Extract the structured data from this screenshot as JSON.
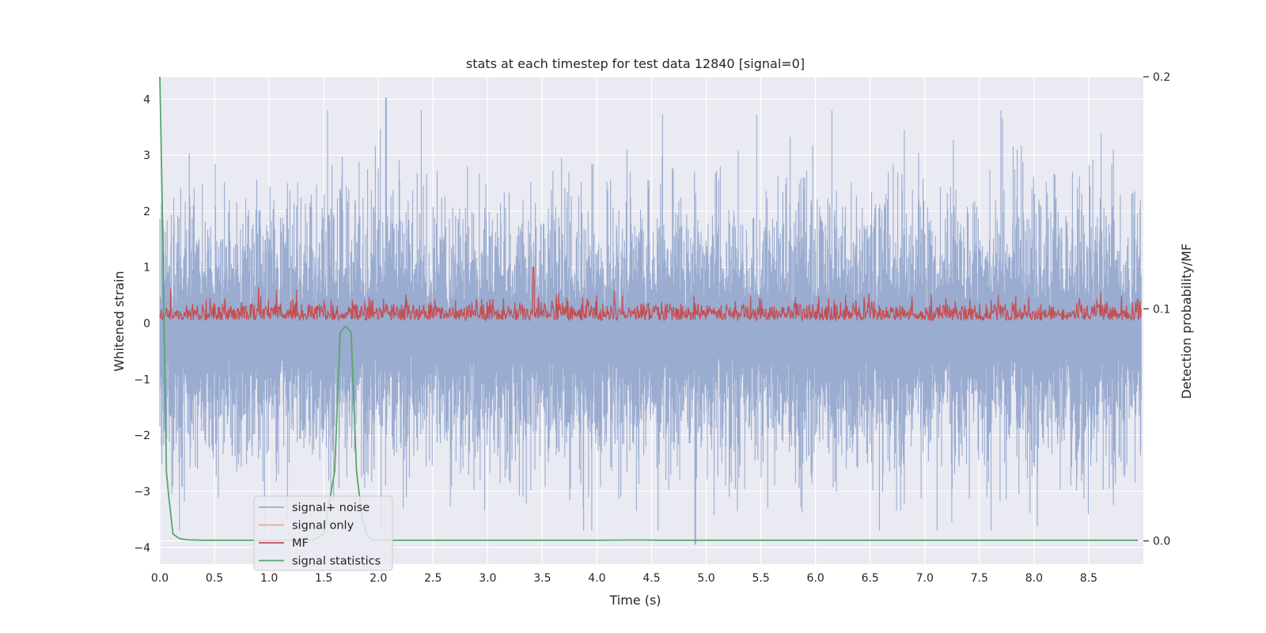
{
  "chart_data": {
    "type": "line",
    "title": "stats at each timestep for test data 12840 [signal=0]",
    "xlabel": "Time (s)",
    "ylabel": "Whitened strain",
    "ylabel_right": "Detection probability/MF",
    "xlim": [
      0.0,
      9.0
    ],
    "ylim": [
      -4.3,
      4.4
    ],
    "ylim_right": [
      -0.01,
      0.2
    ],
    "xticks": [
      "0.0",
      "0.5",
      "1.0",
      "1.5",
      "2.0",
      "2.5",
      "3.0",
      "3.5",
      "4.0",
      "4.5",
      "5.0",
      "5.5",
      "6.0",
      "6.5",
      "7.0",
      "7.5",
      "8.0",
      "8.5"
    ],
    "yticks": [
      "−4",
      "−3",
      "−2",
      "−1",
      "0",
      "1",
      "2",
      "3",
      "4"
    ],
    "yticks_right": [
      "0.0",
      "0.1",
      "0.2"
    ],
    "grid": true,
    "legend_position": "lower-left",
    "colors": {
      "background": "#eaeaf2",
      "grid": "#ffffff",
      "signal_noise": "#9aacd0",
      "signal_only": "#eca98d",
      "mf": "#c44e52",
      "statistics": "#55a868"
    },
    "series": [
      {
        "name": "signal+ noise",
        "color": "#9aacd0",
        "kind": "dense-noise",
        "axis": "left",
        "sample_rate_hz": 2048,
        "duration_s": 9.0,
        "peak_max": 4.03,
        "peak_max_t": 2.07,
        "peak_min": -3.95,
        "peak_min_t": 4.9
      },
      {
        "name": "signal only",
        "color": "#eca98d",
        "kind": "line",
        "axis": "left",
        "x": [
          0.0,
          9.0
        ],
        "y": [
          0.0,
          0.0
        ]
      },
      {
        "name": "MF",
        "color": "#c44e52",
        "kind": "dense-noise",
        "axis": "left",
        "sample_rate_hz": 2048,
        "duration_s": 9.0,
        "peak_max": 1.0,
        "peak_max_t": 3.42
      },
      {
        "name": "signal statistics",
        "color": "#55a868",
        "kind": "line",
        "axis": "right",
        "x": [
          0.0,
          0.02,
          0.04,
          0.06,
          0.08,
          0.12,
          0.18,
          0.25,
          0.4,
          0.6,
          0.9,
          1.2,
          1.4,
          1.5,
          1.6,
          1.65,
          1.7,
          1.75,
          1.8,
          1.85,
          1.9,
          1.95,
          2.05,
          3.0,
          4.0,
          4.4,
          4.6,
          5.0,
          6.0,
          7.0,
          8.0,
          8.95
        ],
        "y": [
          0.2,
          0.15,
          0.09,
          0.03,
          0.02,
          0.003,
          0.001,
          0.0005,
          0.0003,
          0.0003,
          0.0003,
          0.0003,
          0.0003,
          0.003,
          0.03,
          0.09,
          0.0925,
          0.09,
          0.03,
          0.01,
          0.002,
          0.0003,
          0.0003,
          0.0003,
          0.0003,
          0.0004,
          0.0003,
          0.0003,
          0.0003,
          0.0003,
          0.0003,
          0.0003
        ]
      }
    ]
  }
}
